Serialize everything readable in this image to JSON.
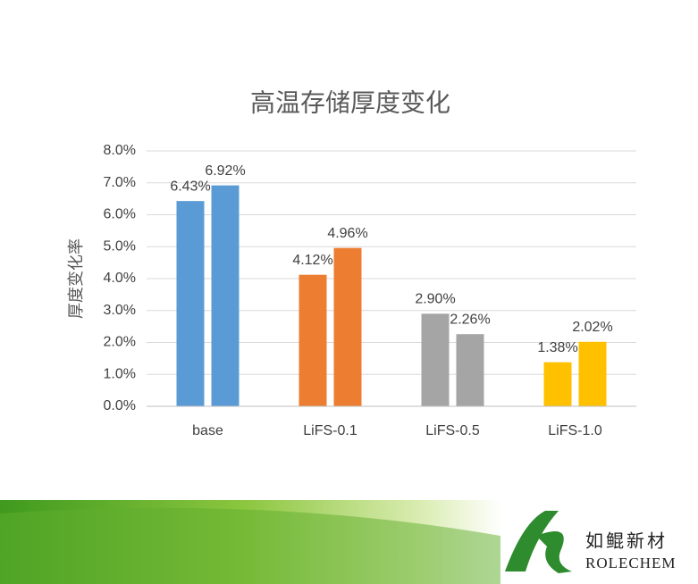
{
  "chart_data": {
    "type": "bar",
    "title": "高温存储厚度变化",
    "y_label": "厚度变化率",
    "categories": [
      "base",
      "LiFS-0.1",
      "LiFS-0.5",
      "LiFS-1.0"
    ],
    "colors": [
      "#5b9bd5",
      "#ed7d31",
      "#a5a5a5",
      "#ffc000"
    ],
    "series": [
      {
        "values": [
          6.43,
          4.12,
          2.9,
          1.38
        ],
        "value_labels": [
          "6.43%",
          "4.12%",
          "2.90%",
          "1.38%"
        ]
      },
      {
        "values": [
          6.92,
          4.96,
          2.26,
          2.02
        ],
        "value_labels": [
          "6.92%",
          "4.96%",
          "2.26%",
          "2.02%"
        ]
      }
    ],
    "ylim": [
      0,
      8
    ],
    "yticks": [
      {
        "value": 0,
        "label": "0.0%"
      },
      {
        "value": 1,
        "label": "1.0%"
      },
      {
        "value": 2,
        "label": "2.0%"
      },
      {
        "value": 3,
        "label": "3.0%"
      },
      {
        "value": 4,
        "label": "4.0%"
      },
      {
        "value": 5,
        "label": "5.0%"
      },
      {
        "value": 6,
        "label": "6.0%"
      },
      {
        "value": 7,
        "label": "7.0%"
      },
      {
        "value": 8,
        "label": "8.0%"
      }
    ],
    "grid": true
  },
  "footer": {
    "brand_cn": "如鲲新材",
    "brand_en": "ROLECHEM"
  }
}
